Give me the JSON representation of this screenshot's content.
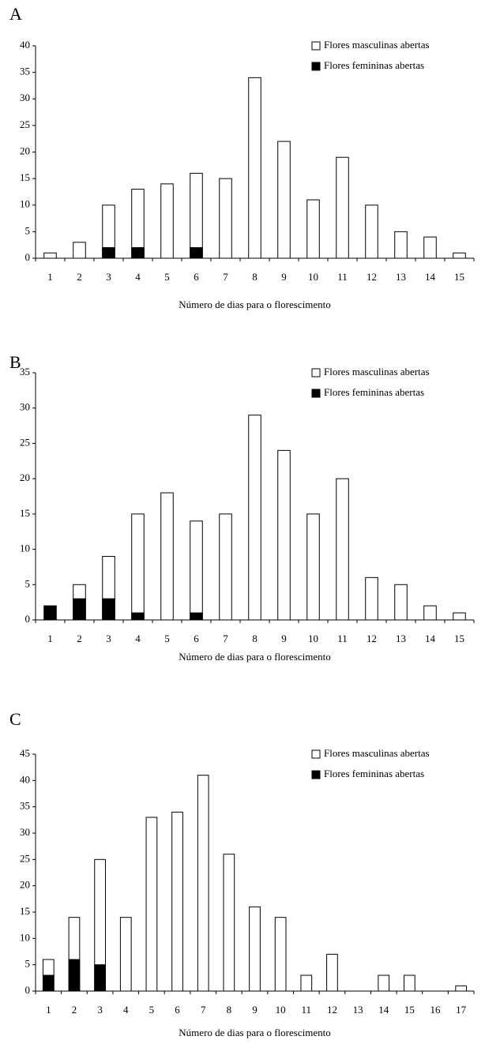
{
  "chart_data": [
    {
      "type": "bar",
      "panel_label": "A",
      "x_label": "Número de dias para o florescimento",
      "categories": [
        "1",
        "2",
        "3",
        "4",
        "5",
        "6",
        "7",
        "8",
        "9",
        "10",
        "11",
        "12",
        "13",
        "14",
        "15"
      ],
      "series": [
        {
          "name": "Flores masculinas abertas",
          "color": "#ffffff",
          "values": [
            1,
            3,
            10,
            13,
            14,
            16,
            15,
            34,
            22,
            11,
            19,
            10,
            5,
            4,
            1
          ]
        },
        {
          "name": "Flores femininas abertas",
          "color": "#000000",
          "values": [
            0,
            0,
            2,
            2,
            0,
            2,
            0,
            0,
            0,
            0,
            0,
            0,
            0,
            0,
            0
          ]
        }
      ],
      "ylim": [
        0,
        40
      ],
      "yticks": [
        0,
        5,
        10,
        15,
        20,
        25,
        30,
        35,
        40
      ],
      "legend": "top-right",
      "grid": false
    },
    {
      "type": "bar",
      "panel_label": "B",
      "x_label": "Número de dias para o florescimento",
      "categories": [
        "1",
        "2",
        "3",
        "4",
        "5",
        "6",
        "7",
        "8",
        "9",
        "10",
        "11",
        "12",
        "13",
        "14",
        "15"
      ],
      "series": [
        {
          "name": "Flores masculinas abertas",
          "color": "#ffffff",
          "values": [
            0,
            5,
            9,
            15,
            18,
            14,
            15,
            29,
            24,
            15,
            20,
            6,
            5,
            2,
            1
          ]
        },
        {
          "name": "Flores femininas abertas",
          "color": "#000000",
          "values": [
            2,
            3,
            3,
            1,
            0,
            1,
            0,
            0,
            0,
            0,
            0,
            0,
            0,
            0,
            0
          ]
        }
      ],
      "ylim": [
        0,
        35
      ],
      "yticks": [
        0,
        5,
        10,
        15,
        20,
        25,
        30,
        35
      ],
      "legend": "top-right",
      "grid": false
    },
    {
      "type": "bar",
      "panel_label": "C",
      "x_label": "Número de dias para o florescimento",
      "categories": [
        "1",
        "2",
        "3",
        "4",
        "5",
        "6",
        "7",
        "8",
        "9",
        "10",
        "11",
        "12",
        "13",
        "14",
        "15",
        "16",
        "17"
      ],
      "series": [
        {
          "name": "Flores masculinas abertas",
          "color": "#ffffff",
          "values": [
            6,
            14,
            25,
            14,
            33,
            34,
            41,
            26,
            16,
            14,
            3,
            7,
            0,
            3,
            3,
            0,
            1
          ]
        },
        {
          "name": "Flores femininas abertas",
          "color": "#000000",
          "values": [
            3,
            6,
            5,
            0,
            0,
            0,
            0,
            0,
            0,
            0,
            0,
            0,
            0,
            0,
            0,
            0,
            0
          ]
        }
      ],
      "ylim": [
        0,
        45
      ],
      "yticks": [
        0,
        5,
        10,
        15,
        20,
        25,
        30,
        35,
        40,
        45
      ],
      "legend": "top-right",
      "grid": false
    }
  ]
}
